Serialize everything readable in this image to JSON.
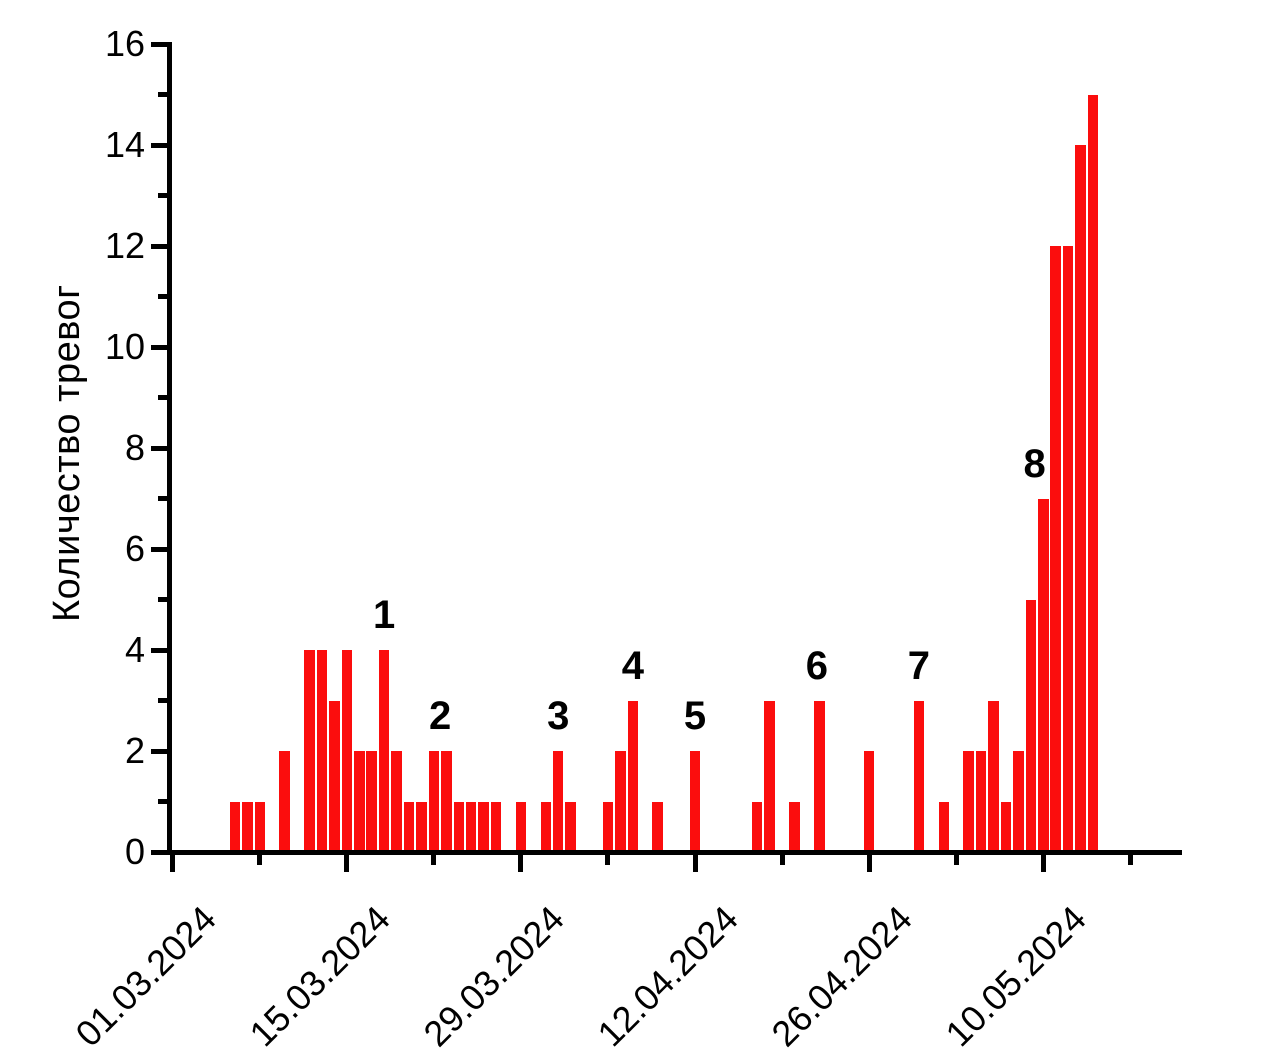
{
  "page": {
    "background": "#ffffff"
  },
  "chart_data": {
    "type": "bar",
    "title": "",
    "xlabel": "",
    "ylabel": "Количество тревог",
    "bar_color": "#fb0d0d",
    "axis_color": "#000000",
    "grid": false,
    "legend": null,
    "ylim": [
      0,
      16
    ],
    "y_major_ticks": [
      0,
      2,
      4,
      6,
      8,
      10,
      12,
      14,
      16
    ],
    "y_minor_ticks": [
      1,
      3,
      5,
      7,
      9,
      11,
      13,
      15
    ],
    "x_axis": {
      "start_date": "01.03.2024",
      "span_days": 81,
      "major_ticks": [
        {
          "day": 0,
          "label": "01.03.2024"
        },
        {
          "day": 14,
          "label": "15.03.2024"
        },
        {
          "day": 28,
          "label": "29.03.2024"
        },
        {
          "day": 42,
          "label": "12.04.2024"
        },
        {
          "day": 56,
          "label": "26.04.2024"
        },
        {
          "day": 70,
          "label": "10.05.2024"
        }
      ],
      "minor_tick_days": [
        7,
        21,
        35,
        49,
        63,
        77
      ]
    },
    "bars": [
      {
        "date": "06.03.2024",
        "day": 5,
        "value": 1
      },
      {
        "date": "07.03.2024",
        "day": 6,
        "value": 1
      },
      {
        "date": "08.03.2024",
        "day": 7,
        "value": 1
      },
      {
        "date": "10.03.2024",
        "day": 9,
        "value": 2
      },
      {
        "date": "12.03.2024",
        "day": 11,
        "value": 4
      },
      {
        "date": "13.03.2024",
        "day": 12,
        "value": 4
      },
      {
        "date": "14.03.2024",
        "day": 13,
        "value": 3
      },
      {
        "date": "15.03.2024",
        "day": 14,
        "value": 4
      },
      {
        "date": "16.03.2024",
        "day": 15,
        "value": 2
      },
      {
        "date": "17.03.2024",
        "day": 16,
        "value": 2
      },
      {
        "date": "18.03.2024",
        "day": 17,
        "value": 4
      },
      {
        "date": "19.03.2024",
        "day": 18,
        "value": 2
      },
      {
        "date": "20.03.2024",
        "day": 19,
        "value": 1
      },
      {
        "date": "21.03.2024",
        "day": 20,
        "value": 1
      },
      {
        "date": "22.03.2024",
        "day": 21,
        "value": 2
      },
      {
        "date": "23.03.2024",
        "day": 22,
        "value": 2
      },
      {
        "date": "24.03.2024",
        "day": 23,
        "value": 1
      },
      {
        "date": "25.03.2024",
        "day": 24,
        "value": 1
      },
      {
        "date": "26.03.2024",
        "day": 25,
        "value": 1
      },
      {
        "date": "27.03.2024",
        "day": 26,
        "value": 1
      },
      {
        "date": "29.03.2024",
        "day": 28,
        "value": 1
      },
      {
        "date": "31.03.2024",
        "day": 30,
        "value": 1
      },
      {
        "date": "01.04.2024",
        "day": 31,
        "value": 2
      },
      {
        "date": "02.04.2024",
        "day": 32,
        "value": 1
      },
      {
        "date": "05.04.2024",
        "day": 35,
        "value": 1
      },
      {
        "date": "06.04.2024",
        "day": 36,
        "value": 2
      },
      {
        "date": "07.04.2024",
        "day": 37,
        "value": 3
      },
      {
        "date": "09.04.2024",
        "day": 39,
        "value": 1
      },
      {
        "date": "12.04.2024",
        "day": 42,
        "value": 2
      },
      {
        "date": "17.04.2024",
        "day": 47,
        "value": 1
      },
      {
        "date": "18.04.2024",
        "day": 48,
        "value": 3
      },
      {
        "date": "20.04.2024",
        "day": 50,
        "value": 1
      },
      {
        "date": "22.04.2024",
        "day": 52,
        "value": 3
      },
      {
        "date": "26.04.2024",
        "day": 56,
        "value": 2
      },
      {
        "date": "30.04.2024",
        "day": 60,
        "value": 3
      },
      {
        "date": "02.05.2024",
        "day": 62,
        "value": 1
      },
      {
        "date": "04.05.2024",
        "day": 64,
        "value": 2
      },
      {
        "date": "05.05.2024",
        "day": 65,
        "value": 2
      },
      {
        "date": "06.05.2024",
        "day": 66,
        "value": 3
      },
      {
        "date": "07.05.2024",
        "day": 67,
        "value": 1
      },
      {
        "date": "08.05.2024",
        "day": 68,
        "value": 2
      },
      {
        "date": "09.05.2024",
        "day": 69,
        "value": 5
      },
      {
        "date": "10.05.2024",
        "day": 70,
        "value": 7
      },
      {
        "date": "11.05.2024",
        "day": 71,
        "value": 12
      },
      {
        "date": "12.05.2024",
        "day": 72,
        "value": 12
      },
      {
        "date": "13.05.2024",
        "day": 73,
        "value": 14
      },
      {
        "date": "14.05.2024",
        "day": 74,
        "value": 15
      }
    ],
    "annotations": [
      {
        "text": "1",
        "day": 17,
        "value": 4
      },
      {
        "text": "2",
        "day": 21.5,
        "value": 2
      },
      {
        "text": "3",
        "day": 31,
        "value": 2
      },
      {
        "text": "4",
        "day": 37,
        "value": 3
      },
      {
        "text": "5",
        "day": 42,
        "value": 2
      },
      {
        "text": "6",
        "day": 51.8,
        "value": 3
      },
      {
        "text": "7",
        "day": 60,
        "value": 3
      },
      {
        "text": "8",
        "day": 69.3,
        "value": 7
      }
    ]
  }
}
